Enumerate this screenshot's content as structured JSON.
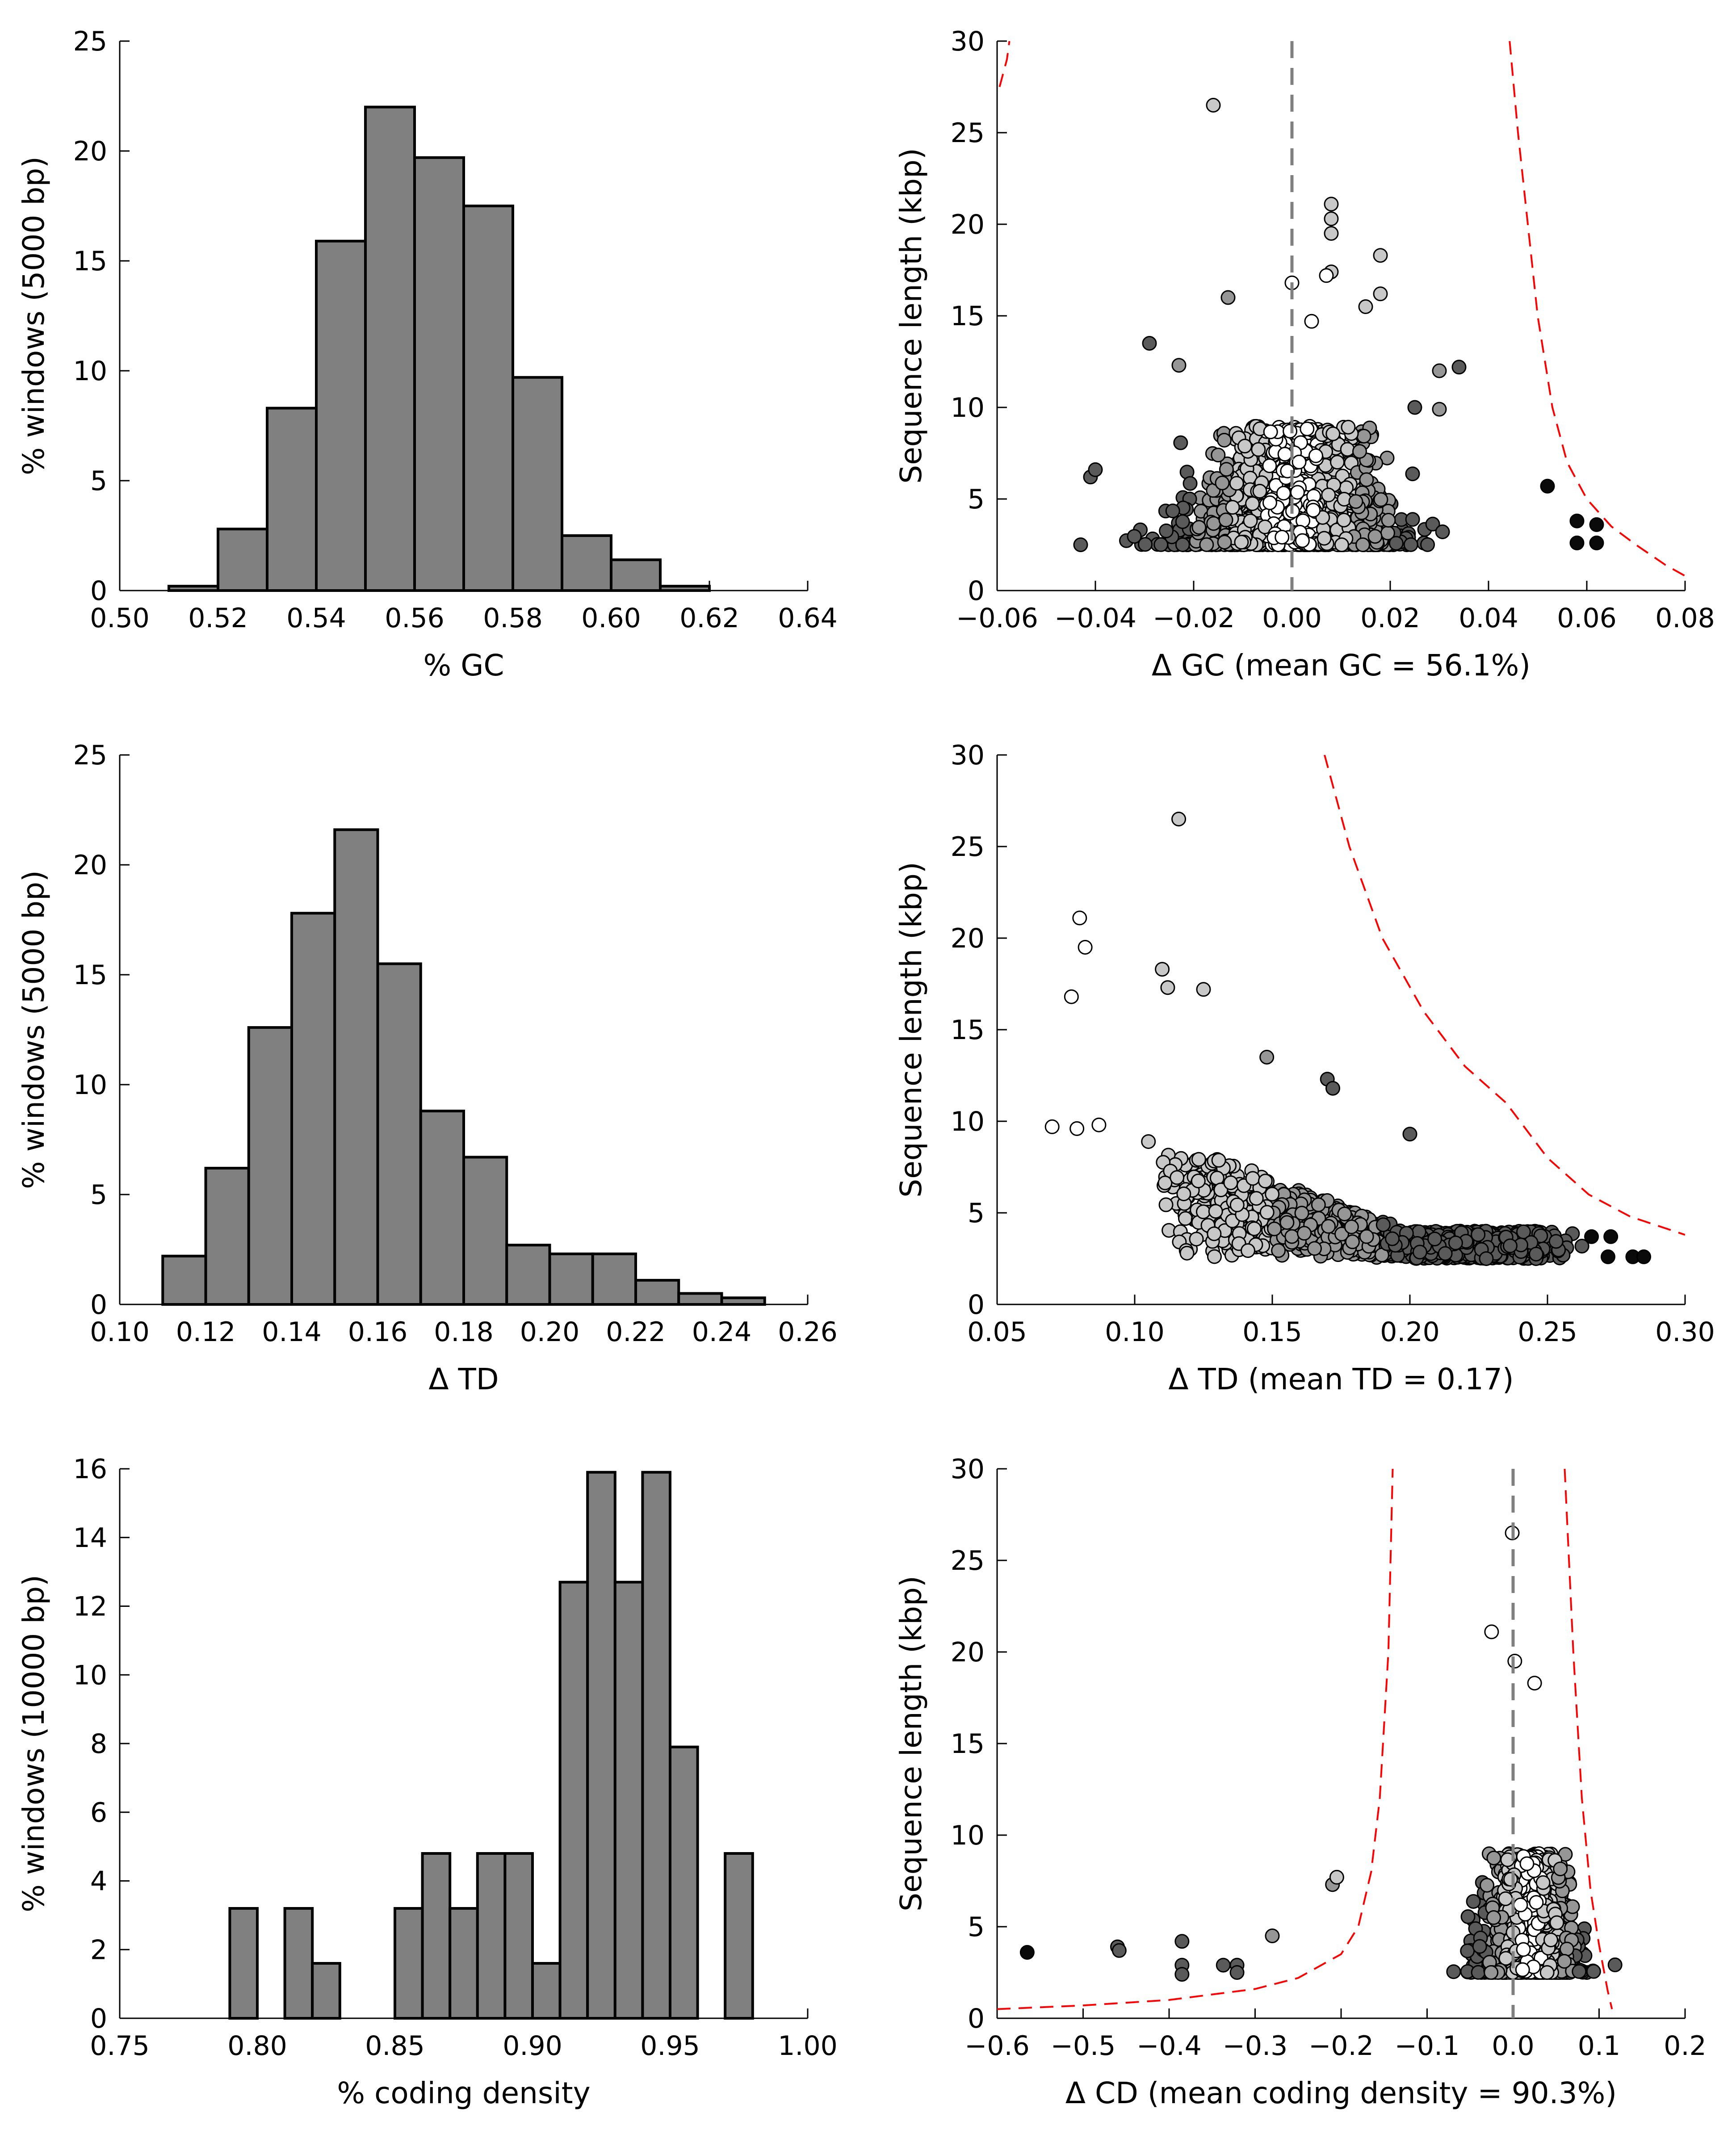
{
  "colors": {
    "bar_fill": "#808080",
    "bar_edge": "#000000",
    "guide": "#ff0000",
    "zero_line": "#808080"
  },
  "chart_data": [
    {
      "type": "bar",
      "xlabel": "% GC",
      "ylabel": "% windows (5000 bp)",
      "xlim": [
        0.5,
        0.64
      ],
      "ylim": [
        0,
        25
      ],
      "xticks": [
        "0.50",
        "0.52",
        "0.54",
        "0.56",
        "0.58",
        "0.60",
        "0.62",
        "0.64"
      ],
      "yticks": [
        "0",
        "5",
        "10",
        "15",
        "20",
        "25"
      ],
      "bin_edges": [
        0.51,
        0.52,
        0.53,
        0.54,
        0.55,
        0.56,
        0.57,
        0.58,
        0.59,
        0.6,
        0.61,
        0.62
      ],
      "values": [
        0.2,
        2.8,
        8.3,
        15.9,
        22.0,
        19.7,
        17.5,
        9.7,
        2.5,
        1.4,
        0.2
      ]
    },
    {
      "type": "scatter",
      "xlabel": "Δ GC (mean GC = 56.1%)",
      "ylabel": "Sequence length (kbp)",
      "xlim": [
        -0.06,
        0.08
      ],
      "ylim": [
        0,
        30
      ],
      "xticks": [
        "−0.06",
        "−0.04",
        "−0.02",
        "0.00",
        "0.02",
        "0.04",
        "0.06",
        "0.08"
      ],
      "yticks": [
        "0",
        "5",
        "10",
        "15",
        "20",
        "25",
        "30"
      ],
      "zero_line": 0.0,
      "guide_curves": [
        [
          [
            -0.0595,
            27.5
          ],
          [
            -0.058,
            29.0
          ],
          [
            -0.0575,
            30.0
          ]
        ],
        [
          [
            0.0443,
            30
          ],
          [
            0.046,
            25
          ],
          [
            0.048,
            20
          ],
          [
            0.05,
            15
          ],
          [
            0.053,
            10
          ],
          [
            0.056,
            7
          ],
          [
            0.06,
            5
          ],
          [
            0.065,
            3.5
          ],
          [
            0.07,
            2.5
          ],
          [
            0.076,
            1.4
          ],
          [
            0.08,
            0.8
          ]
        ]
      ],
      "labeled_points": [
        {
          "x": -0.016,
          "y": 26.5,
          "shade": "light"
        },
        {
          "x": 0.008,
          "y": 21.1,
          "shade": "light"
        },
        {
          "x": 0.008,
          "y": 20.3,
          "shade": "light"
        },
        {
          "x": 0.008,
          "y": 19.5,
          "shade": "light"
        },
        {
          "x": 0.018,
          "y": 18.3,
          "shade": "light"
        },
        {
          "x": 0.008,
          "y": 17.4,
          "shade": "light"
        },
        {
          "x": 0.007,
          "y": 17.2,
          "shade": "white"
        },
        {
          "x": 0.0,
          "y": 16.8,
          "shade": "white"
        },
        {
          "x": 0.018,
          "y": 16.2,
          "shade": "light"
        },
        {
          "x": 0.015,
          "y": 15.5,
          "shade": "light"
        },
        {
          "x": -0.013,
          "y": 16.0,
          "shade": "mid"
        },
        {
          "x": 0.004,
          "y": 14.7,
          "shade": "white"
        },
        {
          "x": -0.029,
          "y": 13.5,
          "shade": "dark"
        },
        {
          "x": -0.023,
          "y": 12.3,
          "shade": "mid"
        },
        {
          "x": 0.034,
          "y": 12.2,
          "shade": "dark"
        },
        {
          "x": 0.03,
          "y": 12.0,
          "shade": "mid"
        },
        {
          "x": 0.03,
          "y": 9.9,
          "shade": "mid"
        },
        {
          "x": 0.025,
          "y": 10.0,
          "shade": "dark"
        },
        {
          "x": 0.052,
          "y": 5.7,
          "shade": "black"
        },
        {
          "x": 0.058,
          "y": 3.8,
          "shade": "black"
        },
        {
          "x": 0.062,
          "y": 3.6,
          "shade": "black"
        },
        {
          "x": 0.058,
          "y": 2.6,
          "shade": "black"
        },
        {
          "x": 0.062,
          "y": 2.6,
          "shade": "black"
        },
        {
          "x": -0.041,
          "y": 6.2,
          "shade": "dark"
        },
        {
          "x": -0.04,
          "y": 6.6,
          "shade": "dark"
        },
        {
          "x": -0.043,
          "y": 2.5,
          "shade": "dark"
        }
      ],
      "point_cloud": {
        "x_center": 0.0,
        "x_spread": 0.035,
        "y_min": 2.5,
        "y_max": 9.0,
        "count": 1400
      }
    },
    {
      "type": "bar",
      "xlabel": "Δ TD",
      "ylabel": "% windows (5000 bp)",
      "xlim": [
        0.1,
        0.26
      ],
      "ylim": [
        0,
        25
      ],
      "xticks": [
        "0.10",
        "0.12",
        "0.14",
        "0.16",
        "0.18",
        "0.20",
        "0.22",
        "0.24",
        "0.26"
      ],
      "yticks": [
        "0",
        "5",
        "10",
        "15",
        "20",
        "25"
      ],
      "bin_edges": [
        0.11,
        0.12,
        0.13,
        0.14,
        0.15,
        0.16,
        0.17,
        0.18,
        0.19,
        0.2,
        0.21,
        0.22,
        0.23,
        0.24,
        0.25
      ],
      "values": [
        2.2,
        6.2,
        12.6,
        17.8,
        21.6,
        15.5,
        8.8,
        6.7,
        2.7,
        2.3,
        2.3,
        1.1,
        0.5,
        0.3
      ]
    },
    {
      "type": "scatter",
      "xlabel": "Δ TD (mean TD = 0.17)",
      "ylabel": "Sequence length (kbp)",
      "xlim": [
        0.05,
        0.3
      ],
      "ylim": [
        0,
        30
      ],
      "xticks": [
        "0.05",
        "0.10",
        "0.15",
        "0.20",
        "0.25",
        "0.30"
      ],
      "yticks": [
        "0",
        "5",
        "10",
        "15",
        "20",
        "25",
        "30"
      ],
      "guide_curves": [
        [
          [
            0.169,
            30
          ],
          [
            0.178,
            25
          ],
          [
            0.19,
            20
          ],
          [
            0.205,
            16
          ],
          [
            0.22,
            13
          ],
          [
            0.235,
            11
          ],
          [
            0.25,
            8
          ],
          [
            0.265,
            6
          ],
          [
            0.28,
            4.8
          ],
          [
            0.3,
            3.8
          ]
        ]
      ],
      "labeled_points": [
        {
          "x": 0.116,
          "y": 26.5,
          "shade": "light"
        },
        {
          "x": 0.08,
          "y": 21.1,
          "shade": "white"
        },
        {
          "x": 0.082,
          "y": 19.5,
          "shade": "white"
        },
        {
          "x": 0.11,
          "y": 18.3,
          "shade": "light"
        },
        {
          "x": 0.077,
          "y": 16.8,
          "shade": "white"
        },
        {
          "x": 0.125,
          "y": 17.2,
          "shade": "light"
        },
        {
          "x": 0.112,
          "y": 17.3,
          "shade": "light"
        },
        {
          "x": 0.07,
          "y": 9.7,
          "shade": "white"
        },
        {
          "x": 0.079,
          "y": 9.6,
          "shade": "white"
        },
        {
          "x": 0.087,
          "y": 9.8,
          "shade": "white"
        },
        {
          "x": 0.119,
          "y": 2.8,
          "shade": "light"
        },
        {
          "x": 0.148,
          "y": 13.5,
          "shade": "mid"
        },
        {
          "x": 0.17,
          "y": 12.3,
          "shade": "dark"
        },
        {
          "x": 0.172,
          "y": 11.8,
          "shade": "dark"
        },
        {
          "x": 0.2,
          "y": 9.3,
          "shade": "dark"
        },
        {
          "x": 0.266,
          "y": 3.7,
          "shade": "black"
        },
        {
          "x": 0.272,
          "y": 2.6,
          "shade": "black"
        },
        {
          "x": 0.273,
          "y": 3.7,
          "shade": "black"
        },
        {
          "x": 0.281,
          "y": 2.6,
          "shade": "black"
        },
        {
          "x": 0.285,
          "y": 2.6,
          "shade": "black"
        }
      ],
      "point_cloud": {
        "x_center": 0.17,
        "x_spread": 0.05,
        "y_min": 2.5,
        "y_max": 9.0,
        "count": 1400
      }
    },
    {
      "type": "bar",
      "xlabel": "% coding density",
      "ylabel": "% windows (10000 bp)",
      "xlim": [
        0.75,
        1.0
      ],
      "ylim": [
        0,
        16
      ],
      "xticks": [
        "0.75",
        "0.80",
        "0.85",
        "0.90",
        "0.95",
        "1.00"
      ],
      "yticks": [
        "0",
        "2",
        "4",
        "6",
        "8",
        "10",
        "12",
        "14",
        "16"
      ],
      "bin_edges": [
        0.79,
        0.8,
        0.81,
        0.82,
        0.83,
        0.84,
        0.85,
        0.86,
        0.87,
        0.88,
        0.89,
        0.9,
        0.91,
        0.92,
        0.93,
        0.94,
        0.95,
        0.96,
        0.97,
        0.98
      ],
      "values": [
        3.2,
        0,
        3.2,
        1.6,
        0,
        0,
        3.2,
        4.8,
        3.2,
        4.8,
        4.8,
        1.6,
        12.7,
        15.9,
        12.7,
        15.9,
        7.9,
        0,
        4.8
      ]
    },
    {
      "type": "scatter",
      "xlabel": "Δ CD (mean coding density = 90.3%)",
      "ylabel": "Sequence length (kbp)",
      "xlim": [
        -0.6,
        0.2
      ],
      "ylim": [
        0,
        30
      ],
      "xticks": [
        "−0.6",
        "−0.5",
        "−0.4",
        "−0.3",
        "−0.2",
        "−0.1",
        "0.0",
        "0.1",
        "0.2"
      ],
      "yticks": [
        "0",
        "5",
        "10",
        "15",
        "20",
        "25",
        "30"
      ],
      "zero_line": 0.0,
      "guide_curves": [
        [
          [
            -0.6,
            0.5
          ],
          [
            -0.5,
            0.7
          ],
          [
            -0.4,
            1.0
          ],
          [
            -0.3,
            1.6
          ],
          [
            -0.25,
            2.2
          ],
          [
            -0.2,
            3.5
          ],
          [
            -0.18,
            5
          ],
          [
            -0.165,
            8
          ],
          [
            -0.155,
            12
          ],
          [
            -0.145,
            20
          ],
          [
            -0.14,
            30
          ]
        ],
        [
          [
            0.06,
            30
          ],
          [
            0.07,
            20
          ],
          [
            0.08,
            12
          ],
          [
            0.09,
            7
          ],
          [
            0.1,
            4
          ],
          [
            0.11,
            1.5
          ],
          [
            0.115,
            0.5
          ]
        ]
      ],
      "labeled_points": [
        {
          "x": -0.001,
          "y": 26.5,
          "shade": "white"
        },
        {
          "x": -0.025,
          "y": 21.1,
          "shade": "white"
        },
        {
          "x": 0.002,
          "y": 19.5,
          "shade": "white"
        },
        {
          "x": 0.025,
          "y": 18.3,
          "shade": "white"
        },
        {
          "x": -0.565,
          "y": 3.6,
          "shade": "black"
        },
        {
          "x": -0.46,
          "y": 3.9,
          "shade": "dark"
        },
        {
          "x": -0.458,
          "y": 3.7,
          "shade": "dark"
        },
        {
          "x": -0.385,
          "y": 4.2,
          "shade": "dark"
        },
        {
          "x": -0.385,
          "y": 2.9,
          "shade": "dark"
        },
        {
          "x": -0.385,
          "y": 2.4,
          "shade": "dark"
        },
        {
          "x": -0.337,
          "y": 2.9,
          "shade": "dark"
        },
        {
          "x": -0.321,
          "y": 2.9,
          "shade": "dark"
        },
        {
          "x": -0.321,
          "y": 2.5,
          "shade": "dark"
        },
        {
          "x": -0.28,
          "y": 4.5,
          "shade": "mid"
        },
        {
          "x": -0.21,
          "y": 7.3,
          "shade": "mid"
        },
        {
          "x": -0.205,
          "y": 7.7,
          "shade": "light"
        }
      ],
      "point_cloud": {
        "x_center": 0.02,
        "x_spread": 0.09,
        "y_min": 2.5,
        "y_max": 9.0,
        "count": 1300
      }
    }
  ]
}
